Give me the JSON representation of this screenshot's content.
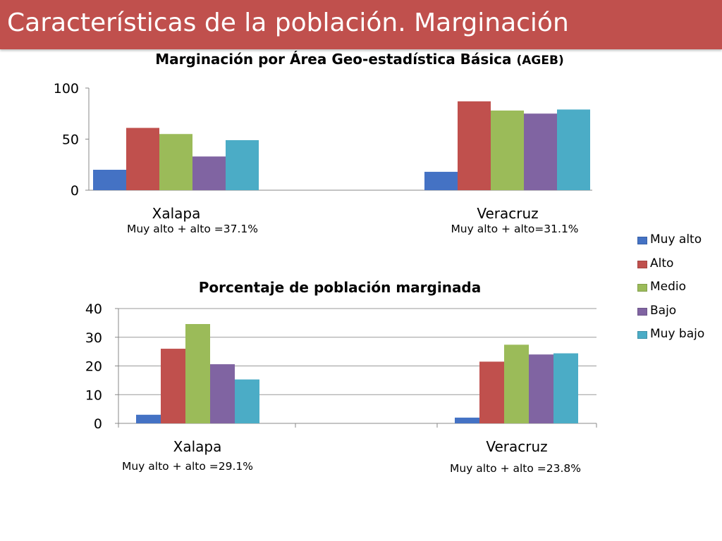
{
  "header": {
    "title": "Características de la población. Marginación"
  },
  "legend": {
    "placement": "right",
    "items": [
      {
        "label": "Muy alto",
        "color": "#4472c4"
      },
      {
        "label": "Alto",
        "color": "#c0504d"
      },
      {
        "label": "Medio",
        "color": "#9bbb59"
      },
      {
        "label": "Bajo",
        "color": "#8064a2"
      },
      {
        "label": "Muy bajo",
        "color": "#4bacc6"
      }
    ]
  },
  "chart_data": [
    {
      "type": "bar",
      "title": "Marginación por Área Geo-estadística Básica",
      "title_suffix": "(AGEB)",
      "categories": [
        "Xalapa",
        "Veracruz"
      ],
      "category_notes": [
        "Muy alto + alto =37.1%",
        "Muy alto + alto=31.1%"
      ],
      "ylim": [
        0,
        100
      ],
      "yticks": [
        0,
        50,
        100
      ],
      "grid": false,
      "series": [
        {
          "name": "Muy alto",
          "values": [
            20,
            18
          ]
        },
        {
          "name": "Alto",
          "values": [
            61,
            87
          ]
        },
        {
          "name": "Medio",
          "values": [
            55,
            78
          ]
        },
        {
          "name": "Bajo",
          "values": [
            33,
            75
          ]
        },
        {
          "name": "Muy bajo",
          "values": [
            49,
            79
          ]
        }
      ]
    },
    {
      "type": "bar",
      "title": "Porcentaje de población marginada",
      "categories": [
        "Xalapa",
        "Veracruz"
      ],
      "category_notes": [
        "Muy alto + alto =29.1%",
        "Muy alto + alto =23.8%"
      ],
      "ylim": [
        0,
        40
      ],
      "yticks": [
        0,
        10,
        20,
        30,
        40
      ],
      "grid": true,
      "series": [
        {
          "name": "Muy alto",
          "values": [
            3,
            2
          ]
        },
        {
          "name": "Alto",
          "values": [
            26,
            21.5
          ]
        },
        {
          "name": "Medio",
          "values": [
            34.6,
            27.4
          ]
        },
        {
          "name": "Bajo",
          "values": [
            20.6,
            24
          ]
        },
        {
          "name": "Muy bajo",
          "values": [
            15.3,
            24.4
          ]
        }
      ]
    }
  ]
}
